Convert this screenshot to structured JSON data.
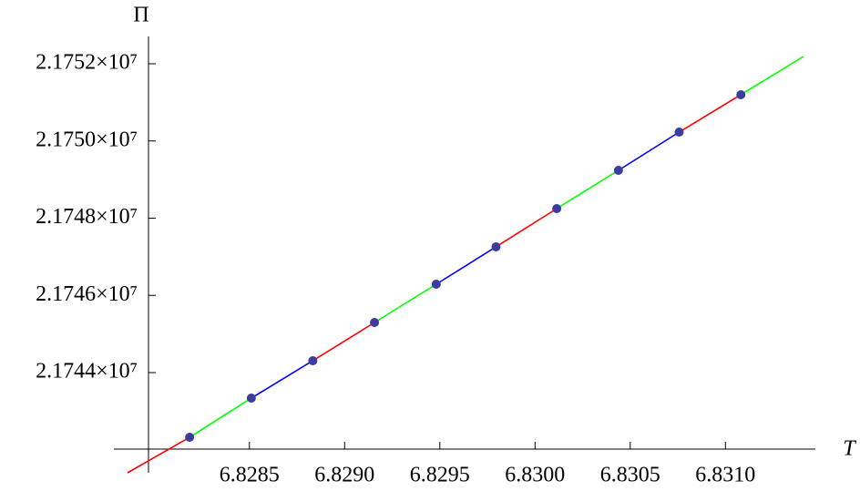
{
  "chart_data": {
    "type": "line",
    "x_label": "T",
    "y_label": "Π",
    "xlim": [
      6.82786,
      6.83141
    ],
    "ylim": [
      21741404,
      21752189
    ],
    "axes_origin": [
      6.82797,
      21742018
    ],
    "xticks": [
      6.8285,
      {
        "value": 6.829,
        "label": "6.8290"
      },
      6.8295,
      {
        "value": 6.83,
        "label": "6.8300"
      },
      6.8305,
      {
        "value": 6.831,
        "label": "6.8310"
      }
    ],
    "yticks": [
      {
        "value": 21744000,
        "label": "2.1744×10⁷"
      },
      {
        "value": 21746000,
        "label": "2.1746×10⁷"
      },
      {
        "value": 21748000,
        "label": "2.1748×10⁷"
      },
      {
        "value": 21750000,
        "label": "2.1750×10⁷"
      },
      {
        "value": 21752000,
        "label": "2.1752×10⁷"
      }
    ],
    "line": {
      "segment_colors": [
        "#ff0000",
        "#00ff00",
        "#0000ff"
      ],
      "x": [
        6.82786,
        6.828186,
        6.82851,
        6.828833,
        6.829157,
        6.829481,
        6.829795,
        6.830114,
        6.830438,
        6.830757,
        6.831081,
        6.83141
      ],
      "y": [
        21741404,
        21742324,
        21743339,
        21744307,
        21745298,
        21746289,
        21747257,
        21748248,
        21749239,
        21750230,
        21751198,
        21752189
      ]
    },
    "points": {
      "color": "#3c3c9c",
      "x": [
        6.828186,
        6.82851,
        6.828833,
        6.829157,
        6.829481,
        6.829795,
        6.830114,
        6.830438,
        6.830757,
        6.831081
      ],
      "y": [
        21742324,
        21743339,
        21744307,
        21745298,
        21746289,
        21747257,
        21748248,
        21749239,
        21750230,
        21751198
      ]
    }
  }
}
